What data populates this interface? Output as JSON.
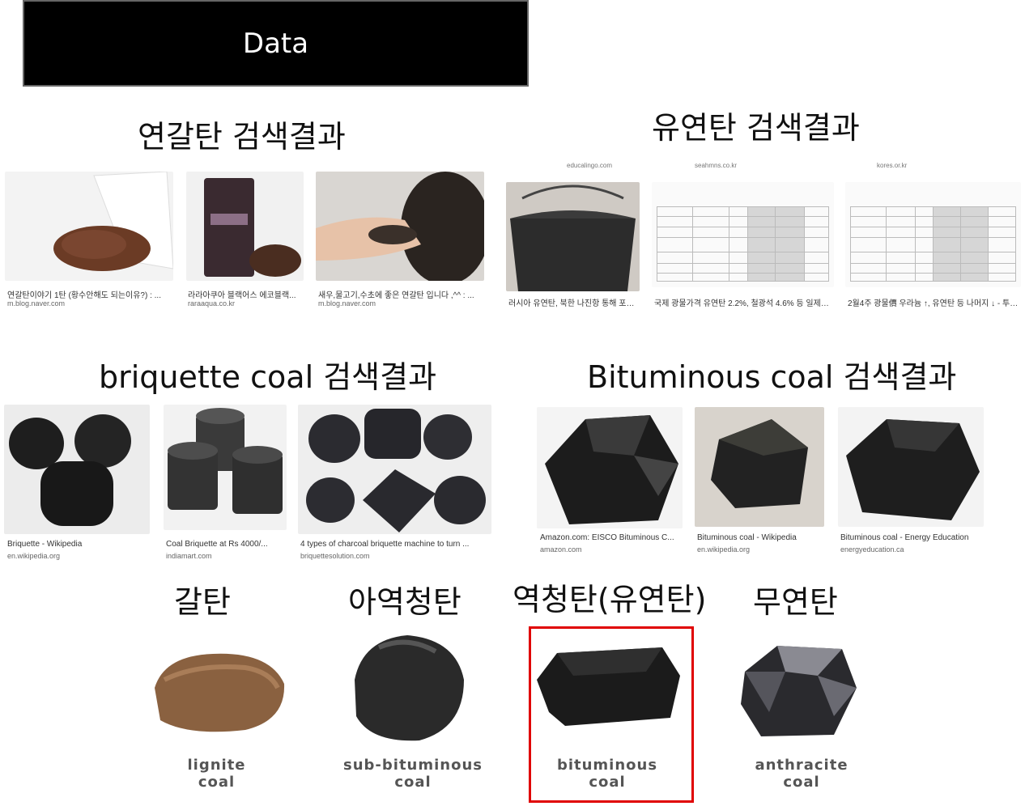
{
  "header": {
    "title": "Data"
  },
  "sections": {
    "lignite_kr": {
      "heading": "연갈탄 검색결과"
    },
    "bituminous_kr": {
      "heading": "유연탄 검색결과"
    },
    "briquette": {
      "heading": "briquette coal 검색결과"
    },
    "bituminous_en": {
      "heading": "Bituminous coal 검색결과"
    }
  },
  "results_lignite_kr": [
    {
      "caption": "연갈탄이야기 1탄 (황수안해도 되는이유?) : ...",
      "source": "m.blog.naver.com"
    },
    {
      "caption": "라라아쿠아 블랙어스 에코블랙...",
      "source": "raraaqua.co.kr"
    },
    {
      "caption": "새우,물고기,수초에 좋은 연갈탄 입니다 ,^^ : ...",
      "source": "m.blog.naver.com"
    }
  ],
  "results_bituminous_kr": [
    {
      "top_source": "educalingo.com",
      "caption": "러시아 유연탄, 북한 나진항 통해 포항 ..."
    },
    {
      "top_source": "seahmns.co.kr",
      "caption": "국제 광물가격 유연탄 2.2%, 철광석 4.6% 등 일제히 ..."
    },
    {
      "top_source": "kores.or.kr",
      "caption": "2월4주 광물價 우라늄 ↑, 유연탄 등 나머지 ↓ - 투데..."
    }
  ],
  "results_briquette": [
    {
      "caption": "Briquette - Wikipedia",
      "source": "en.wikipedia.org"
    },
    {
      "caption": "Coal Briquette at Rs 4000/...",
      "source": "indiamart.com"
    },
    {
      "caption": "4 types of charcoal briquette machine to turn ...",
      "source": "briquettesolution.com"
    }
  ],
  "results_bituminous_en": [
    {
      "caption": "Amazon.com: EISCO Bituminous C...",
      "source": "amazon.com"
    },
    {
      "caption": "Bituminous coal - Wikipedia",
      "source": "en.wikipedia.org"
    },
    {
      "caption": "Bituminous coal - Energy Education",
      "source": "energyeducation.ca"
    }
  ],
  "coal_types": [
    {
      "kr": "갈탄",
      "en_line1": "lignite",
      "en_line2": "coal"
    },
    {
      "kr": "아역청탄",
      "en_line1": "sub-bituminous",
      "en_line2": "coal"
    },
    {
      "kr": "역청탄(유연탄)",
      "en_line1": "bituminous",
      "en_line2": "coal"
    },
    {
      "kr": "무연탄",
      "en_line1": "anthracite",
      "en_line2": "coal"
    }
  ],
  "colors": {
    "highlight": "#e00000",
    "title_bg": "#000000"
  }
}
